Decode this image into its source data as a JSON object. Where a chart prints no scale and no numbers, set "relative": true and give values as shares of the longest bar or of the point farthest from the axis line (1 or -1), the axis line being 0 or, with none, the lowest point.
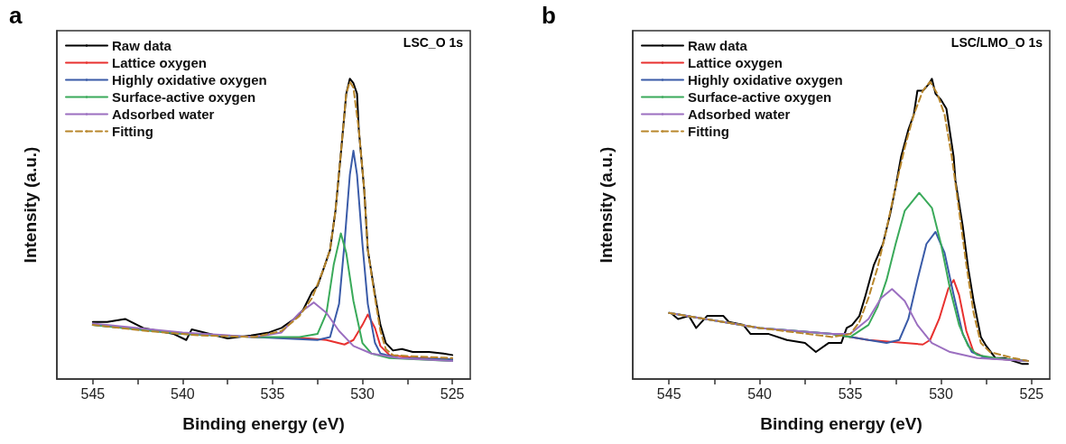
{
  "chart_data": [
    {
      "type": "line",
      "title": "a",
      "xlabel": "Binding energy (eV)",
      "ylabel": "Intensity (a.u.)",
      "annotations": [
        "LSC_O 1s"
      ],
      "relative": true,
      "legend": "top left",
      "grid": false,
      "marker": "none",
      "xlim": [
        547,
        524
      ],
      "xticks": [
        545,
        {
          "value": 542.5,
          "label": null
        },
        540,
        {
          "value": 537.5,
          "label": null
        },
        535,
        {
          "value": 532.5,
          "label": null
        },
        530,
        {
          "value": 527.5,
          "label": null
        },
        525
      ],
      "series": [
        {
          "name": "Raw data",
          "color": "#000000",
          "line_style": "solid",
          "x": [
            545,
            544.2,
            543.2,
            542.2,
            540.5,
            539.8,
            539.5,
            538.5,
            537.5,
            536.2,
            535.2,
            534.5,
            533.8,
            533.3,
            532.8,
            532.5,
            532.2,
            531.8,
            531.5,
            531.2,
            530.9,
            530.7,
            530.5,
            530.3,
            530.2,
            529.9,
            529.7,
            529.3,
            529,
            528.7,
            528.3,
            527.8,
            527.2,
            526.3,
            525.5,
            525
          ],
          "values": [
            0.19,
            0.19,
            0.2,
            0.17,
            0.15,
            0.13,
            0.165,
            0.15,
            0.135,
            0.145,
            0.155,
            0.17,
            0.2,
            0.23,
            0.29,
            0.31,
            0.36,
            0.43,
            0.56,
            0.75,
            0.95,
            1.0,
            0.985,
            0.95,
            0.83,
            0.63,
            0.43,
            0.28,
            0.18,
            0.12,
            0.095,
            0.1,
            0.09,
            0.09,
            0.085,
            0.08
          ]
        },
        {
          "name": "Lattice oxygen",
          "color": "#e8312f",
          "line_style": "solid",
          "x": [
            536,
            533,
            532,
            531,
            530.5,
            530,
            529.7,
            529.3,
            529,
            528.5,
            527,
            525
          ],
          "values": [
            0.14,
            0.135,
            0.13,
            0.115,
            0.13,
            0.18,
            0.215,
            0.17,
            0.11,
            0.08,
            0.07,
            0.065
          ]
        },
        {
          "name": "Highly oxidative oxygen",
          "color": "#3a5ba8",
          "line_style": "solid",
          "x": [
            545,
            540,
            536,
            532.5,
            531.8,
            531.3,
            531,
            530.7,
            530.5,
            530.3,
            530,
            529.7,
            529.3,
            529,
            528,
            525
          ],
          "values": [
            0.18,
            0.15,
            0.14,
            0.13,
            0.14,
            0.25,
            0.45,
            0.68,
            0.76,
            0.68,
            0.45,
            0.25,
            0.12,
            0.085,
            0.07,
            0.065
          ]
        },
        {
          "name": "Surface-active oxygen",
          "color": "#3aaa5a",
          "line_style": "solid",
          "x": [
            545,
            540,
            536,
            533.5,
            532.5,
            532,
            531.6,
            531.2,
            530.9,
            530.5,
            530,
            529.5,
            528.5,
            525
          ],
          "values": [
            0.18,
            0.15,
            0.14,
            0.14,
            0.15,
            0.22,
            0.38,
            0.485,
            0.42,
            0.26,
            0.12,
            0.085,
            0.07,
            0.06
          ]
        },
        {
          "name": "Adsorbed water",
          "color": "#9b6fc0",
          "line_style": "solid",
          "x": [
            545,
            540,
            536,
            534.5,
            533.5,
            532.7,
            532,
            531.3,
            530.5,
            529.5,
            528,
            525
          ],
          "values": [
            0.185,
            0.155,
            0.14,
            0.155,
            0.22,
            0.255,
            0.22,
            0.16,
            0.11,
            0.085,
            0.07,
            0.06
          ]
        },
        {
          "name": "Fitting",
          "color": "#b8862b",
          "line_style": "dashed",
          "x": [
            545,
            542,
            539,
            536,
            534.5,
            533.5,
            532.8,
            532.2,
            531.8,
            531.5,
            531.2,
            530.9,
            530.7,
            530.5,
            530.2,
            529.9,
            529.7,
            529.3,
            529,
            528.7,
            528.3,
            527,
            525
          ],
          "values": [
            0.18,
            0.16,
            0.145,
            0.14,
            0.16,
            0.21,
            0.27,
            0.36,
            0.43,
            0.56,
            0.75,
            0.95,
            0.99,
            0.97,
            0.83,
            0.63,
            0.43,
            0.27,
            0.16,
            0.1,
            0.08,
            0.075,
            0.07
          ]
        }
      ]
    },
    {
      "type": "line",
      "title": "b",
      "xlabel": "Binding energy (eV)",
      "ylabel": "Intensity (a.u.)",
      "annotations": [
        "LSC/LMO_O 1s"
      ],
      "relative": true,
      "legend": "top left",
      "grid": false,
      "marker": "none",
      "xlim": [
        547,
        524
      ],
      "xticks": [
        545,
        {
          "value": 542.5,
          "label": null
        },
        540,
        {
          "value": 537.5,
          "label": null
        },
        535,
        {
          "value": 532.5,
          "label": null
        },
        530,
        {
          "value": 527.5,
          "label": null
        },
        525
      ],
      "series": [
        {
          "name": "Raw data",
          "color": "#000000",
          "line_style": "solid",
          "x": [
            544.9,
            544.5,
            543.9,
            543.5,
            542.9,
            542,
            541.7,
            540.9,
            540.5,
            539.5,
            538.5,
            537.5,
            536.9,
            536.2,
            535.5,
            535.2,
            534.9,
            534.5,
            534.2,
            533.7,
            533.2,
            532.8,
            532.5,
            532.2,
            531.8,
            531.5,
            531.3,
            531,
            530.7,
            530.5,
            530.3,
            530,
            529.7,
            529.3,
            529.2,
            528.8,
            528.5,
            528.2,
            527.8,
            527.5,
            527,
            526.5,
            526,
            525.5,
            525.2
          ],
          "values": [
            0.22,
            0.2,
            0.21,
            0.17,
            0.21,
            0.21,
            0.19,
            0.18,
            0.15,
            0.15,
            0.13,
            0.12,
            0.09,
            0.12,
            0.12,
            0.17,
            0.18,
            0.21,
            0.27,
            0.38,
            0.45,
            0.55,
            0.64,
            0.74,
            0.83,
            0.88,
            0.96,
            0.96,
            0.98,
            1.0,
            0.95,
            0.93,
            0.9,
            0.74,
            0.66,
            0.51,
            0.37,
            0.26,
            0.14,
            0.11,
            0.07,
            0.07,
            0.06,
            0.05,
            0.05
          ]
        },
        {
          "name": "Lattice oxygen",
          "color": "#e8312f",
          "line_style": "solid",
          "x": [
            536,
            534,
            532,
            531,
            530.6,
            530.1,
            529.6,
            529.3,
            529,
            528.6,
            528.2,
            527.5,
            525.2
          ],
          "values": [
            0.15,
            0.13,
            0.12,
            0.115,
            0.13,
            0.2,
            0.3,
            0.33,
            0.28,
            0.16,
            0.09,
            0.07,
            0.06
          ]
        },
        {
          "name": "Highly oxidative oxygen",
          "color": "#3a5ba8",
          "line_style": "solid",
          "x": [
            545,
            540,
            536,
            534,
            533,
            532.3,
            531.8,
            531.3,
            530.8,
            530.3,
            529.8,
            529.3,
            528.8,
            528.3,
            527.5,
            525.2
          ],
          "values": [
            0.22,
            0.17,
            0.15,
            0.13,
            0.12,
            0.13,
            0.2,
            0.33,
            0.45,
            0.49,
            0.42,
            0.28,
            0.15,
            0.09,
            0.07,
            0.06
          ]
        },
        {
          "name": "Surface-active oxygen",
          "color": "#3aaa5a",
          "line_style": "solid",
          "x": [
            545,
            540,
            536,
            535,
            534,
            533.5,
            533,
            532.5,
            532,
            531.2,
            530.5,
            530,
            529.5,
            529,
            528.5,
            528,
            527,
            525.2
          ],
          "values": [
            0.22,
            0.17,
            0.15,
            0.14,
            0.18,
            0.24,
            0.33,
            0.45,
            0.56,
            0.62,
            0.57,
            0.45,
            0.3,
            0.18,
            0.11,
            0.08,
            0.07,
            0.06
          ]
        },
        {
          "name": "Adsorbed water",
          "color": "#9b6fc0",
          "line_style": "solid",
          "x": [
            545,
            540,
            536,
            535,
            534,
            533.3,
            532.7,
            532,
            531.3,
            530.5,
            529.5,
            528,
            525.2
          ],
          "values": [
            0.22,
            0.17,
            0.15,
            0.15,
            0.2,
            0.27,
            0.3,
            0.26,
            0.18,
            0.12,
            0.09,
            0.07,
            0.06
          ]
        },
        {
          "name": "Fitting",
          "color": "#b8862b",
          "line_style": "dashed",
          "x": [
            545,
            540,
            536,
            535,
            534.5,
            534,
            533.5,
            533,
            532.5,
            532,
            531.5,
            531,
            530.6,
            530.2,
            529.8,
            529.4,
            529,
            528.6,
            528.2,
            527.8,
            527.3,
            526,
            525.2
          ],
          "values": [
            0.22,
            0.17,
            0.14,
            0.15,
            0.19,
            0.27,
            0.37,
            0.5,
            0.64,
            0.77,
            0.88,
            0.96,
            0.99,
            0.95,
            0.88,
            0.74,
            0.56,
            0.38,
            0.22,
            0.12,
            0.09,
            0.07,
            0.06
          ]
        }
      ]
    }
  ]
}
